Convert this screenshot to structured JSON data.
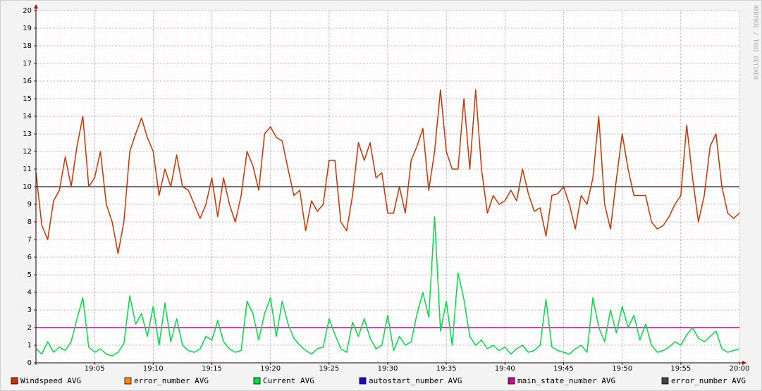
{
  "chart_data": {
    "type": "line",
    "watermark": "RRDTOOL / TOBI OETIKER",
    "x": [
      "19:00:00",
      "19:00:30",
      "19:01:00",
      "19:01:30",
      "19:02:00",
      "19:02:30",
      "19:03:00",
      "19:03:30",
      "19:04:00",
      "19:04:30",
      "19:05:00",
      "19:05:30",
      "19:06:00",
      "19:06:30",
      "19:07:00",
      "19:07:30",
      "19:08:00",
      "19:08:30",
      "19:09:00",
      "19:09:30",
      "19:10:00",
      "19:10:30",
      "19:11:00",
      "19:11:30",
      "19:12:00",
      "19:12:30",
      "19:13:00",
      "19:13:30",
      "19:14:00",
      "19:14:30",
      "19:15:00",
      "19:15:30",
      "19:16:00",
      "19:16:30",
      "19:17:00",
      "19:17:30",
      "19:18:00",
      "19:18:30",
      "19:19:00",
      "19:19:30",
      "19:20:00",
      "19:20:30",
      "19:21:00",
      "19:21:30",
      "19:22:00",
      "19:22:30",
      "19:23:00",
      "19:23:30",
      "19:24:00",
      "19:24:30",
      "19:25:00",
      "19:25:30",
      "19:26:00",
      "19:26:30",
      "19:27:00",
      "19:27:30",
      "19:28:00",
      "19:28:30",
      "19:29:00",
      "19:29:30",
      "19:30:00",
      "19:30:30",
      "19:31:00",
      "19:31:30",
      "19:32:00",
      "19:32:30",
      "19:33:00",
      "19:33:30",
      "19:34:00",
      "19:34:30",
      "19:35:00",
      "19:35:30",
      "19:36:00",
      "19:36:30",
      "19:37:00",
      "19:37:30",
      "19:38:00",
      "19:38:30",
      "19:39:00",
      "19:39:30",
      "19:40:00",
      "19:40:30",
      "19:41:00",
      "19:41:30",
      "19:42:00",
      "19:42:30",
      "19:43:00",
      "19:43:30",
      "19:44:00",
      "19:44:30",
      "19:45:00",
      "19:45:30",
      "19:46:00",
      "19:46:30",
      "19:47:00",
      "19:47:30",
      "19:48:00",
      "19:48:30",
      "19:49:00",
      "19:49:30",
      "19:50:00",
      "19:50:30",
      "19:51:00",
      "19:51:30",
      "19:52:00",
      "19:52:30",
      "19:53:00",
      "19:53:30",
      "19:54:00",
      "19:54:30",
      "19:55:00",
      "19:55:30",
      "19:56:00",
      "19:56:30",
      "19:57:00",
      "19:57:30",
      "19:58:00",
      "19:58:30",
      "19:59:00",
      "19:59:30",
      "20:00:00"
    ],
    "series": [
      {
        "name": "Windspeed AVG",
        "color": "#cc3300",
        "values": [
          10.8,
          7.8,
          7.0,
          9.2,
          9.8,
          11.7,
          10,
          12.3,
          14,
          10,
          10.5,
          12,
          9,
          8,
          6.2,
          8,
          12,
          13,
          13.9,
          12.8,
          12,
          9.5,
          11,
          10,
          11.8,
          10,
          9.8,
          9,
          8.2,
          9,
          10.5,
          8.3,
          10.5,
          9,
          8,
          9.5,
          12,
          11.2,
          9.8,
          13,
          13.4,
          12.8,
          12.6,
          11,
          9.5,
          9.8,
          7.5,
          9.2,
          8.6,
          9,
          11.5,
          11.5,
          8,
          7.5,
          9.5,
          12.5,
          11.5,
          12.5,
          10.5,
          10.8,
          8.5,
          8.5,
          10,
          8.5,
          11.5,
          12.3,
          13.3,
          9.8,
          12,
          15.5,
          12,
          11,
          11,
          15,
          11,
          15.5,
          11,
          8.5,
          9.5,
          9,
          9.2,
          9.8,
          9.2,
          11,
          9.6,
          8.6,
          8.8,
          7.2,
          9.5,
          9.6,
          10,
          9,
          7.6,
          9.5,
          9,
          10.5,
          14,
          9,
          7.6,
          10.4,
          13,
          11,
          9.5,
          9.5,
          9.5,
          8,
          7.6,
          7.8,
          8.3,
          9,
          9.5,
          13.5,
          10.5,
          8,
          9.5,
          12.3,
          13,
          10,
          8.5,
          8.2,
          8.5
        ]
      },
      {
        "name": "error_number AVG",
        "color": "#ff8800",
        "values": [
          null,
          null,
          null,
          null,
          null,
          null,
          null,
          null,
          null,
          null,
          null,
          null,
          null,
          null,
          null,
          null,
          null,
          null,
          null,
          null,
          null,
          null,
          null,
          null,
          null,
          null,
          null,
          null,
          null,
          null,
          null,
          null,
          null,
          null,
          null,
          null,
          null,
          null,
          null,
          null,
          null,
          null,
          null,
          null,
          null,
          null,
          null,
          null,
          null,
          null,
          null,
          null,
          null,
          null,
          null,
          null,
          null,
          null,
          null,
          null,
          null,
          null,
          null,
          null,
          null,
          null,
          null,
          null,
          null,
          null,
          null,
          null,
          null,
          null,
          null,
          null,
          null,
          null,
          null,
          null,
          null,
          null,
          null,
          null,
          null,
          null,
          null,
          null,
          null,
          null,
          null,
          null,
          null,
          null,
          null,
          null,
          null,
          null,
          null,
          null,
          null,
          null,
          null,
          null,
          null,
          null,
          null,
          null,
          null,
          null,
          null,
          null,
          null,
          null,
          null,
          null,
          null,
          null,
          null,
          null,
          null
        ]
      },
      {
        "name": "Current AVG",
        "color": "#00dd44",
        "values": [
          0.8,
          0.5,
          1.2,
          0.6,
          0.9,
          0.7,
          1.2,
          2.5,
          3.7,
          0.9,
          0.6,
          0.8,
          0.5,
          0.4,
          0.6,
          1.1,
          3.8,
          2.2,
          2.8,
          1.5,
          3.2,
          1.0,
          3.4,
          1.2,
          2.5,
          1.0,
          0.7,
          0.6,
          0.8,
          1.5,
          1.3,
          2.4,
          1.2,
          0.8,
          0.6,
          0.7,
          3.5,
          2.8,
          1.3,
          2.8,
          3.7,
          1.5,
          3.5,
          2.2,
          1.4,
          1.0,
          0.7,
          0.5,
          0.8,
          0.9,
          2.5,
          1.6,
          0.8,
          0.6,
          2.3,
          1.5,
          2.5,
          1.4,
          0.8,
          1.0,
          2.7,
          0.7,
          1.5,
          1.0,
          1.2,
          2.8,
          4.0,
          2.6,
          8.3,
          1.8,
          3.5,
          1.0,
          5.1,
          3.6,
          1.5,
          1.0,
          1.3,
          0.8,
          1.0,
          0.7,
          0.9,
          0.5,
          0.8,
          1.0,
          0.6,
          0.7,
          1.0,
          3.6,
          0.9,
          0.7,
          0.6,
          0.5,
          0.8,
          1.0,
          0.6,
          3.7,
          2.0,
          1.2,
          3.0,
          1.7,
          3.2,
          2.0,
          2.7,
          1.3,
          2.2,
          1.0,
          0.6,
          0.7,
          0.9,
          1.2,
          1.0,
          1.6,
          2.0,
          1.4,
          1.2,
          1.5,
          1.8,
          0.8,
          0.6,
          0.7,
          0.8
        ]
      },
      {
        "name": "autostart_number AVG",
        "color": "#2200cc",
        "values": [
          null,
          null,
          null,
          null,
          null,
          null,
          null,
          null,
          null,
          null,
          null,
          null,
          null,
          null,
          null,
          null,
          null,
          null,
          null,
          null,
          null,
          null,
          null,
          null,
          null,
          null,
          null,
          null,
          null,
          null,
          null,
          null,
          null,
          null,
          null,
          null,
          null,
          null,
          null,
          null,
          null,
          null,
          null,
          null,
          null,
          null,
          null,
          null,
          null,
          null,
          null,
          null,
          null,
          null,
          null,
          null,
          null,
          null,
          null,
          null,
          null,
          null,
          null,
          null,
          null,
          null,
          null,
          null,
          null,
          null,
          null,
          null,
          null,
          null,
          null,
          null,
          null,
          null,
          null,
          null,
          null,
          null,
          null,
          null,
          null,
          null,
          null,
          null,
          null,
          null,
          null,
          null,
          null,
          null,
          null,
          null,
          null,
          null,
          null,
          null,
          null,
          null,
          null,
          null,
          null,
          null,
          null,
          null,
          null,
          null,
          null,
          null,
          null,
          null,
          null,
          null,
          null,
          null,
          null,
          null,
          null
        ]
      },
      {
        "name": "main_state_number AVG",
        "color": "#cc0099",
        "values": [
          2,
          2,
          2,
          2,
          2,
          2,
          2,
          2,
          2,
          2,
          2,
          2,
          2,
          2,
          2,
          2,
          2,
          2,
          2,
          2,
          2,
          2,
          2,
          2,
          2,
          2,
          2,
          2,
          2,
          2,
          2,
          2,
          2,
          2,
          2,
          2,
          2,
          2,
          2,
          2,
          2,
          2,
          2,
          2,
          2,
          2,
          2,
          2,
          2,
          2,
          2,
          2,
          2,
          2,
          2,
          2,
          2,
          2,
          2,
          2,
          2,
          2,
          2,
          2,
          2,
          2,
          2,
          2,
          2,
          2,
          2,
          2,
          2,
          2,
          2,
          2,
          2,
          2,
          2,
          2,
          2,
          2,
          2,
          2,
          2,
          2,
          2,
          2,
          2,
          2,
          2,
          2,
          2,
          2,
          2,
          2,
          2,
          2,
          2,
          2,
          2,
          2,
          2,
          2,
          2,
          2,
          2,
          2,
          2,
          2,
          2,
          2,
          2,
          2,
          2,
          2,
          2,
          2,
          2,
          2,
          2
        ]
      },
      {
        "name": "error_number AVG",
        "color": "#444444",
        "values": [
          10,
          10,
          10,
          10,
          10,
          10,
          10,
          10,
          10,
          10,
          10,
          10,
          10,
          10,
          10,
          10,
          10,
          10,
          10,
          10,
          10,
          10,
          10,
          10,
          10,
          10,
          10,
          10,
          10,
          10,
          10,
          10,
          10,
          10,
          10,
          10,
          10,
          10,
          10,
          10,
          10,
          10,
          10,
          10,
          10,
          10,
          10,
          10,
          10,
          10,
          10,
          10,
          10,
          10,
          10,
          10,
          10,
          10,
          10,
          10,
          10,
          10,
          10,
          10,
          10,
          10,
          10,
          10,
          10,
          10,
          10,
          10,
          10,
          10,
          10,
          10,
          10,
          10,
          10,
          10,
          10,
          10,
          10,
          10,
          10,
          10,
          10,
          10,
          10,
          10,
          10,
          10,
          10,
          10,
          10,
          10,
          10,
          10,
          10,
          10,
          10,
          10,
          10,
          10,
          10,
          10,
          10,
          10,
          10,
          10,
          10,
          10,
          10,
          10,
          10,
          10,
          10,
          10,
          10,
          10,
          10
        ]
      }
    ],
    "xlim": [
      "19:00:00",
      "20:00:00"
    ],
    "xticks": [
      {
        "value": "19:05:00",
        "label": "19:05"
      },
      {
        "value": "19:10:00",
        "label": "19:10"
      },
      {
        "value": "19:15:00",
        "label": "19:15"
      },
      {
        "value": "19:20:00",
        "label": "19:20"
      },
      {
        "value": "19:25:00",
        "label": "19:25"
      },
      {
        "value": "19:30:00",
        "label": "19:30"
      },
      {
        "value": "19:35:00",
        "label": "19:35"
      },
      {
        "value": "19:40:00",
        "label": "19:40"
      },
      {
        "value": "19:45:00",
        "label": "19:45"
      },
      {
        "value": "19:50:00",
        "label": "19:50"
      },
      {
        "value": "19:55:00",
        "label": "19:55"
      },
      {
        "value": "20:00:00",
        "label": "20:00"
      }
    ],
    "ylim": [
      0,
      20
    ],
    "yticks": [
      0,
      1,
      2,
      3,
      4,
      5,
      6,
      7,
      8,
      9,
      10,
      11,
      12,
      13,
      14,
      15,
      16,
      17,
      18,
      19,
      20
    ],
    "grid": true,
    "legend": "bottom"
  }
}
